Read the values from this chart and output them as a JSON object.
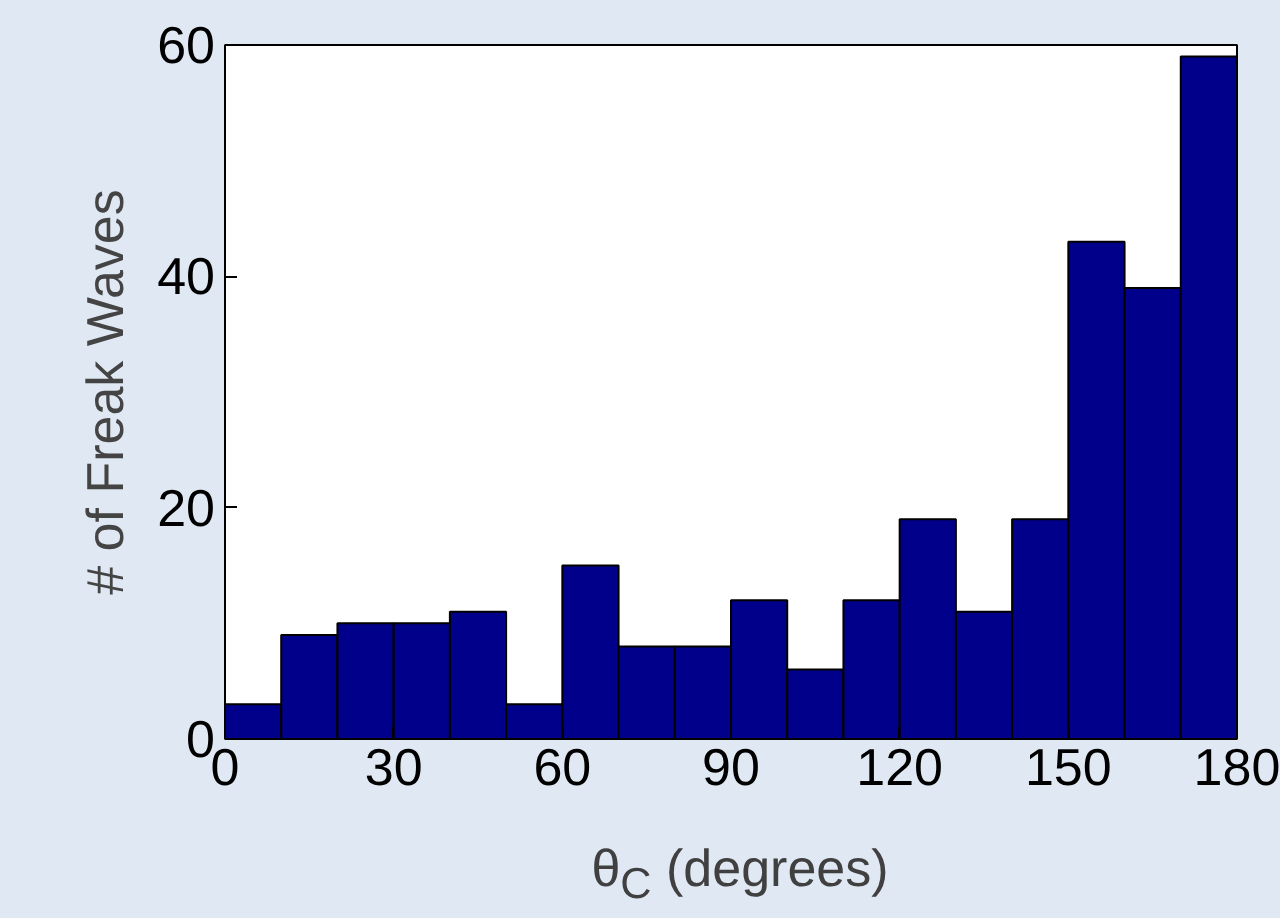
{
  "chart_data": {
    "type": "histogram",
    "xlabel": "θ$_{C}$ (degrees)",
    "ylabel": "# of Freak Waves",
    "bins": [
      0,
      10,
      20,
      30,
      40,
      50,
      60,
      70,
      80,
      90,
      100,
      110,
      120,
      130,
      140,
      150,
      160,
      170,
      180
    ],
    "values": [
      3,
      9,
      10,
      10,
      11,
      3,
      15,
      8,
      8,
      12,
      6,
      12,
      19,
      11,
      19,
      43,
      39,
      59
    ],
    "color": "#00008b",
    "xlim": [
      0,
      180
    ],
    "xticks": [
      0,
      30,
      60,
      90,
      120,
      150,
      180
    ],
    "ylim": [
      0,
      60
    ],
    "yticks": [
      0,
      20,
      40,
      60
    ],
    "grid": false
  }
}
